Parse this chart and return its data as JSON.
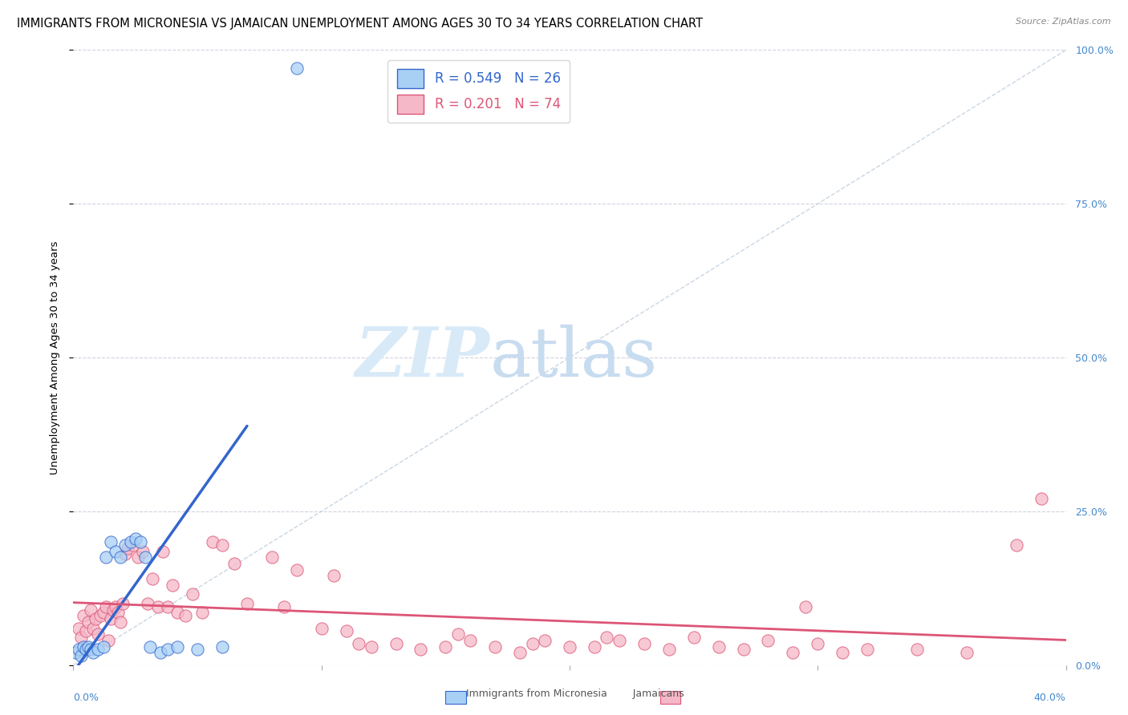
{
  "title": "IMMIGRANTS FROM MICRONESIA VS JAMAICAN UNEMPLOYMENT AMONG AGES 30 TO 34 YEARS CORRELATION CHART",
  "source": "Source: ZipAtlas.com",
  "ylabel": "Unemployment Among Ages 30 to 34 years",
  "ylabel_right_ticks": [
    "100.0%",
    "75.0%",
    "50.0%",
    "25.0%",
    "0.0%"
  ],
  "ylabel_right_vals": [
    1.0,
    0.75,
    0.5,
    0.25,
    0.0
  ],
  "xmin": 0.0,
  "xmax": 0.4,
  "ymin": 0.0,
  "ymax": 1.0,
  "r_blue": 0.549,
  "n_blue": 26,
  "r_pink": 0.201,
  "n_pink": 74,
  "legend_label_blue": "Immigrants from Micronesia",
  "legend_label_pink": "Jamaicans",
  "color_blue": "#A8D0F5",
  "color_pink": "#F5B8C8",
  "color_trendline_blue": "#3366CC",
  "color_trendline_pink": "#DD5577",
  "color_refline": "#BBCCDD",
  "blue_scatter_x": [
    0.001,
    0.002,
    0.003,
    0.004,
    0.005,
    0.006,
    0.007,
    0.008,
    0.01,
    0.012,
    0.013,
    0.015,
    0.017,
    0.019,
    0.021,
    0.023,
    0.025,
    0.027,
    0.029,
    0.031,
    0.035,
    0.038,
    0.042,
    0.05,
    0.06,
    0.09
  ],
  "blue_scatter_y": [
    0.02,
    0.025,
    0.015,
    0.03,
    0.025,
    0.03,
    0.025,
    0.02,
    0.025,
    0.03,
    0.175,
    0.2,
    0.185,
    0.175,
    0.195,
    0.2,
    0.205,
    0.2,
    0.175,
    0.03,
    0.02,
    0.025,
    0.03,
    0.025,
    0.03,
    0.97
  ],
  "pink_scatter_x": [
    0.002,
    0.003,
    0.004,
    0.005,
    0.006,
    0.007,
    0.008,
    0.009,
    0.01,
    0.011,
    0.012,
    0.013,
    0.014,
    0.015,
    0.016,
    0.017,
    0.018,
    0.019,
    0.02,
    0.021,
    0.022,
    0.024,
    0.026,
    0.028,
    0.03,
    0.032,
    0.034,
    0.036,
    0.038,
    0.04,
    0.042,
    0.045,
    0.048,
    0.052,
    0.056,
    0.06,
    0.065,
    0.07,
    0.08,
    0.085,
    0.09,
    0.1,
    0.105,
    0.11,
    0.115,
    0.12,
    0.13,
    0.14,
    0.15,
    0.155,
    0.16,
    0.17,
    0.18,
    0.185,
    0.19,
    0.2,
    0.21,
    0.215,
    0.22,
    0.23,
    0.24,
    0.25,
    0.26,
    0.27,
    0.28,
    0.29,
    0.295,
    0.3,
    0.31,
    0.32,
    0.34,
    0.36,
    0.38,
    0.39
  ],
  "pink_scatter_y": [
    0.06,
    0.045,
    0.08,
    0.055,
    0.07,
    0.09,
    0.06,
    0.075,
    0.05,
    0.08,
    0.085,
    0.095,
    0.04,
    0.075,
    0.09,
    0.095,
    0.085,
    0.07,
    0.1,
    0.18,
    0.19,
    0.195,
    0.175,
    0.185,
    0.1,
    0.14,
    0.095,
    0.185,
    0.095,
    0.13,
    0.085,
    0.08,
    0.115,
    0.085,
    0.2,
    0.195,
    0.165,
    0.1,
    0.175,
    0.095,
    0.155,
    0.06,
    0.145,
    0.055,
    0.035,
    0.03,
    0.035,
    0.025,
    0.03,
    0.05,
    0.04,
    0.03,
    0.02,
    0.035,
    0.04,
    0.03,
    0.03,
    0.045,
    0.04,
    0.035,
    0.025,
    0.045,
    0.03,
    0.025,
    0.04,
    0.02,
    0.095,
    0.035,
    0.02,
    0.025,
    0.025,
    0.02,
    0.195,
    0.27
  ],
  "blue_trendline_x0": 0.0,
  "blue_trendline_x1": 0.07,
  "pink_trendline_x0": 0.0,
  "pink_trendline_x1": 0.4,
  "watermark_zip": "ZIP",
  "watermark_atlas": "atlas",
  "watermark_color": "#D8EAF8",
  "background_color": "#FFFFFF",
  "grid_color": "#CCCCDD",
  "title_fontsize": 10.5,
  "axis_label_fontsize": 9.5,
  "tick_fontsize": 9,
  "legend_fontsize": 12
}
